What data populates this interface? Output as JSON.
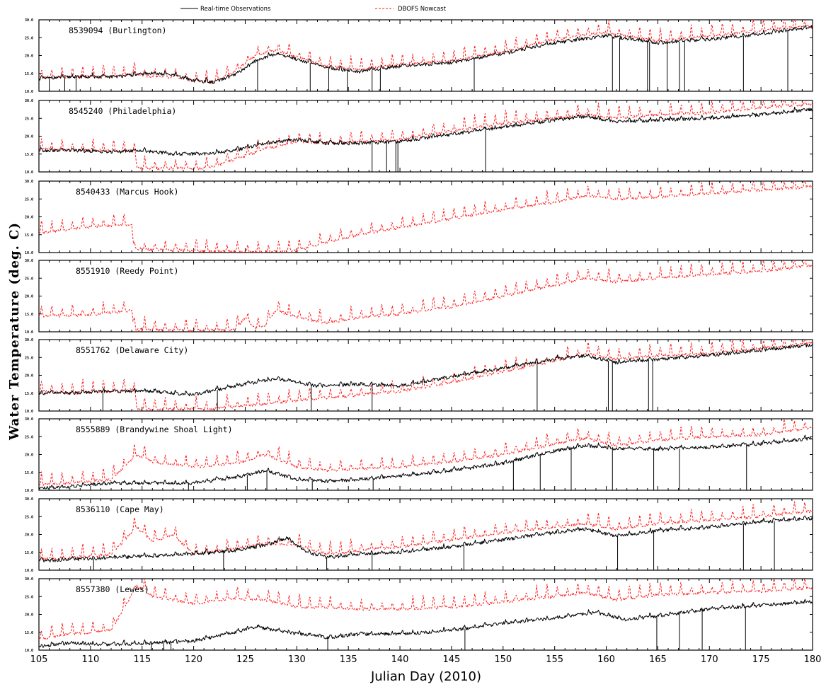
{
  "legend": {
    "observed": "Real-time Observations",
    "nowcast": "DBOFS Nowcast"
  },
  "colors": {
    "observed": "#000000",
    "nowcast": "#ff1a1a"
  },
  "chart_data": {
    "type": "line",
    "xlabel": "Julian Day (2010)",
    "ylabel": "Water Temperature (deg. C)",
    "xlim": [
      105,
      180
    ],
    "xticks": [
      "105",
      "110",
      "115",
      "120",
      "125",
      "130",
      "135",
      "140",
      "145",
      "150",
      "155",
      "160",
      "165",
      "170",
      "175",
      "180"
    ],
    "ylim": [
      10,
      30
    ],
    "yticks": [
      "10.0",
      "15.0",
      "20.0",
      "25.0",
      "30.0"
    ],
    "grid": false,
    "legend_position": "top",
    "panels": [
      {
        "title": "8539094 (Burlington)",
        "observed": {
          "x": [
            105,
            108,
            112,
            116,
            118,
            120,
            122,
            124,
            126,
            128,
            130,
            133,
            136,
            140,
            145,
            150,
            155,
            160,
            165,
            170,
            175,
            180
          ],
          "y": [
            13.5,
            14,
            14,
            15,
            14.5,
            13,
            12.5,
            14.5,
            18.5,
            20.5,
            19,
            16.5,
            15.5,
            17,
            18,
            20.5,
            23.5,
            25.5,
            23.5,
            24.5,
            26,
            28
          ]
        },
        "nowcast": {
          "x": [
            105,
            108,
            112,
            114,
            116,
            118,
            120,
            122,
            124,
            126,
            128,
            130,
            133,
            136,
            140,
            145,
            150,
            155,
            160,
            165,
            170,
            175,
            180
          ],
          "y": [
            14,
            14,
            14,
            15,
            14,
            14,
            13,
            12.5,
            15.5,
            20,
            21.5,
            19.5,
            17,
            16,
            17.5,
            18.5,
            21,
            24.5,
            26.5,
            24,
            25.5,
            27,
            28.5
          ]
        },
        "observed_gaps": [
          106,
          107.5,
          108.6,
          126.2,
          131.3,
          133.1,
          134.9,
          137.3,
          138.1,
          147.2,
          160.6,
          161.3,
          164,
          164.2,
          165.9,
          167.1,
          167.6,
          173.3,
          177.6
        ]
      },
      {
        "title": "8545240 (Philadelphia)",
        "observed": {
          "x": [
            105,
            108,
            112,
            115,
            118,
            121,
            124,
            127,
            130,
            133,
            136,
            140,
            145,
            150,
            155,
            158,
            161,
            165,
            170,
            175,
            180
          ],
          "y": [
            16,
            16,
            15.5,
            16,
            15,
            15,
            16,
            18,
            19,
            18,
            18,
            18.5,
            20.5,
            22.5,
            24.5,
            25.5,
            24,
            24.5,
            25,
            26,
            27.5
          ]
        },
        "nowcast": {
          "x": [
            105,
            108,
            112,
            114.3,
            114.5,
            121,
            122,
            124,
            127,
            130,
            133,
            136,
            140,
            145,
            150,
            155,
            158,
            161,
            165,
            170,
            175,
            180
          ],
          "y": [
            16.5,
            16,
            16,
            16,
            11,
            11,
            11.5,
            13.5,
            16.5,
            18.5,
            18,
            18.5,
            19,
            21.5,
            23.5,
            25,
            26,
            25,
            26,
            26.5,
            28,
            29
          ]
        },
        "observed_gaps": [
          137.3,
          138.7,
          139.6,
          139.8,
          148.3
        ]
      },
      {
        "title": "8540433 (Marcus Hook)",
        "observed": {
          "x": [],
          "y": []
        },
        "nowcast": {
          "x": [
            105,
            108,
            111,
            114,
            114.2,
            126,
            130,
            133,
            136,
            140,
            145,
            150,
            155,
            158,
            161,
            165,
            170,
            175,
            180
          ],
          "y": [
            15.5,
            16.5,
            17.5,
            17.5,
            11,
            10,
            10.5,
            13,
            15,
            17,
            19.5,
            22,
            24,
            26,
            25,
            25.5,
            26.5,
            27.5,
            28.5
          ]
        },
        "observed_gaps": []
      },
      {
        "title": "8551910 (Reedy Point)",
        "observed": {
          "x": [],
          "y": []
        },
        "nowcast": {
          "x": [
            105,
            108,
            111,
            114,
            114.2,
            124,
            125,
            126,
            127,
            128,
            130,
            133,
            136,
            140,
            145,
            150,
            155,
            158,
            161,
            165,
            170,
            175,
            180
          ],
          "y": [
            14.5,
            14.5,
            15,
            16,
            10.5,
            10.5,
            14,
            11,
            12,
            16,
            14,
            12.5,
            14,
            15,
            17,
            20,
            23,
            25,
            24,
            25,
            26,
            27,
            28.5
          ]
        },
        "observed_gaps": []
      },
      {
        "title": "8551762 (Delaware City)",
        "observed": {
          "x": [
            105,
            108,
            112,
            116,
            120,
            124,
            128,
            132,
            136,
            140,
            145,
            150,
            155,
            158,
            161,
            165,
            170,
            175,
            180
          ],
          "y": [
            15,
            15,
            15.5,
            15.5,
            14.5,
            17,
            19,
            17,
            17.5,
            17,
            19.5,
            22,
            24.5,
            25.5,
            23.5,
            24.5,
            25.5,
            27,
            28.5
          ]
        },
        "nowcast": {
          "x": [
            105,
            108,
            112,
            114.3,
            114.5,
            122,
            123,
            127,
            132,
            136,
            140,
            145,
            150,
            155,
            158,
            161,
            165,
            170,
            175,
            180
          ],
          "y": [
            15.5,
            15,
            15.5,
            16,
            10.5,
            10.5,
            11,
            12,
            13.5,
            14.5,
            15.5,
            18,
            21,
            24,
            26,
            24.5,
            25.5,
            26,
            27.5,
            29
          ]
        },
        "observed_gaps": [
          111.2,
          122.3,
          131.4,
          137.3,
          153.3,
          160.2,
          160.6,
          164.1,
          164.5
        ]
      },
      {
        "title": "8555889 (Brandywine Shoal Light)",
        "observed": {
          "x": [
            105,
            108,
            112,
            116,
            120,
            124,
            127,
            130,
            133,
            136,
            140,
            145,
            150,
            155,
            158,
            161,
            165,
            170,
            175,
            180
          ],
          "y": [
            10.5,
            11,
            12,
            12,
            12,
            13.5,
            15.5,
            13,
            12.5,
            13,
            14,
            15.5,
            17.5,
            21,
            22.5,
            21.5,
            21.5,
            22,
            23,
            24.5
          ]
        },
        "nowcast": {
          "x": [
            105,
            108,
            112,
            114.5,
            116,
            120,
            124,
            127,
            130,
            133,
            136,
            140,
            145,
            150,
            155,
            158,
            161,
            165,
            170,
            175,
            180
          ],
          "y": [
            11.5,
            12,
            13,
            20,
            18,
            16.5,
            17.5,
            20,
            16.5,
            15.5,
            16,
            16.5,
            18,
            20,
            23,
            24.5,
            22.5,
            24,
            25,
            25.5,
            27.5
          ]
        },
        "observed_gaps": [
          119.5,
          125.2,
          127.1,
          131.5,
          137.4,
          151,
          153.6,
          156.6,
          160.6,
          164.6,
          167.1,
          173.6
        ]
      },
      {
        "title": "8536110 (Cape May)",
        "observed": {
          "x": [
            105,
            108,
            112,
            116,
            120,
            124,
            127,
            129,
            131,
            133,
            136,
            140,
            145,
            150,
            155,
            158,
            161,
            165,
            170,
            175,
            180
          ],
          "y": [
            12.5,
            13,
            13.5,
            14,
            14.5,
            15.5,
            17,
            19,
            15,
            13.5,
            14.5,
            15,
            16.5,
            18.5,
            20.5,
            21.5,
            19.5,
            21,
            22,
            23.5,
            24.5
          ]
        },
        "nowcast": {
          "x": [
            105,
            108,
            112,
            114.5,
            116,
            118,
            120,
            124,
            127,
            130,
            133,
            136,
            140,
            145,
            150,
            155,
            158,
            161,
            165,
            170,
            175,
            180
          ],
          "y": [
            13,
            13.5,
            14.5,
            22,
            18,
            20,
            14.5,
            16,
            17.5,
            17,
            14.5,
            15.5,
            16.5,
            18.5,
            20.5,
            22,
            23,
            21.5,
            23,
            24,
            25,
            26.5
          ]
        },
        "observed_gaps": [
          110.3,
          122.9,
          132.9,
          137.3,
          146.2,
          161.1,
          164.6,
          173.3,
          176.3
        ]
      },
      {
        "title": "8557380 (Lewes)",
        "observed": {
          "x": [
            105,
            108,
            112,
            116,
            120,
            124,
            126,
            129,
            133,
            136,
            140,
            145,
            150,
            155,
            159,
            162,
            165,
            170,
            175,
            180
          ],
          "y": [
            11,
            12,
            11.5,
            12,
            12.5,
            15,
            16.5,
            15,
            13.5,
            14.5,
            14.5,
            15.5,
            17.5,
            19,
            20.5,
            18.5,
            19.5,
            21.5,
            22.5,
            23.5
          ]
        },
        "nowcast": {
          "x": [
            105,
            108,
            112,
            114.5,
            116,
            120,
            124,
            127,
            130,
            133,
            136,
            140,
            145,
            150,
            155,
            158,
            161,
            165,
            170,
            175,
            180
          ],
          "y": [
            13,
            14.5,
            15.5,
            28,
            25,
            23,
            24.5,
            24,
            22,
            22,
            21.5,
            21.5,
            22,
            23.5,
            25,
            26,
            24,
            25.5,
            26,
            26.5,
            27.5
          ]
        },
        "observed_gaps": [
          115.9,
          117.1,
          117.8,
          133,
          146.3,
          164.9,
          167.1,
          169.3,
          173.5
        ]
      }
    ]
  }
}
